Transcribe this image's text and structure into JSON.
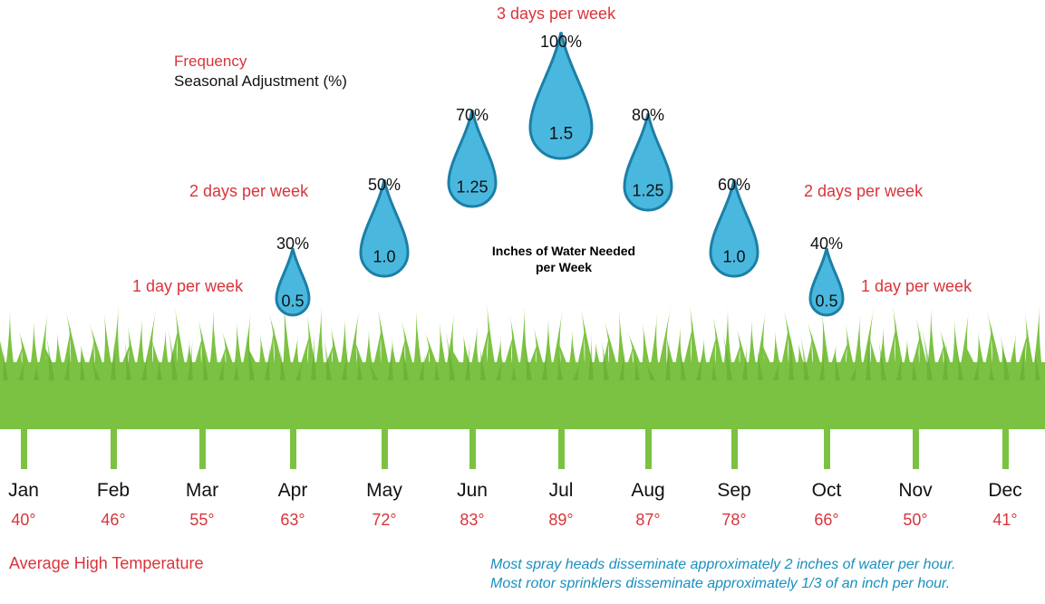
{
  "legend": {
    "frequency_label": "Frequency",
    "adjustment_label": "Seasonal Adjustment (%)"
  },
  "frequency_labels": {
    "top": "3 days per week",
    "left_two": "2 days per week",
    "right_two": "2 days per week",
    "left_one": "1 day per week",
    "right_one": "1 day per week"
  },
  "center_label": {
    "line1": "Inches of Water Needed",
    "line2": "per Week"
  },
  "footer": {
    "left": "Average High Temperature",
    "note1": "Most spray heads disseminate approximately 2 inches of water per hour.",
    "note2": "Most rotor sprinklers disseminate approximately 1/3 of an inch per hour."
  },
  "colors": {
    "red": "#d9343b",
    "blue_note": "#1a8fbd",
    "drop_fill": "#4ab8de",
    "drop_stroke": "#1c7fa6",
    "grass": "#7cc242",
    "grass_dark": "#5ea831"
  },
  "chart_data": {
    "type": "scatter",
    "categories": [
      "Jan",
      "Feb",
      "Mar",
      "Apr",
      "May",
      "Jun",
      "Jul",
      "Aug",
      "Sep",
      "Oct",
      "Nov",
      "Dec"
    ],
    "temperatures": [
      "40°",
      "46°",
      "55°",
      "63°",
      "72°",
      "83°",
      "89°",
      "87°",
      "78°",
      "66°",
      "50°",
      "41°"
    ],
    "drops": [
      {
        "month": "Apr",
        "inches": "0.5",
        "adjustment": "30%"
      },
      {
        "month": "May",
        "inches": "1.0",
        "adjustment": "50%"
      },
      {
        "month": "Jun",
        "inches": "1.25",
        "adjustment": "70%"
      },
      {
        "month": "Jul",
        "inches": "1.5",
        "adjustment": "100%"
      },
      {
        "month": "Aug",
        "inches": "1.25",
        "adjustment": "80%"
      },
      {
        "month": "Sep",
        "inches": "1.0",
        "adjustment": "60%"
      },
      {
        "month": "Oct",
        "inches": "0.5",
        "adjustment": "40%"
      }
    ]
  }
}
